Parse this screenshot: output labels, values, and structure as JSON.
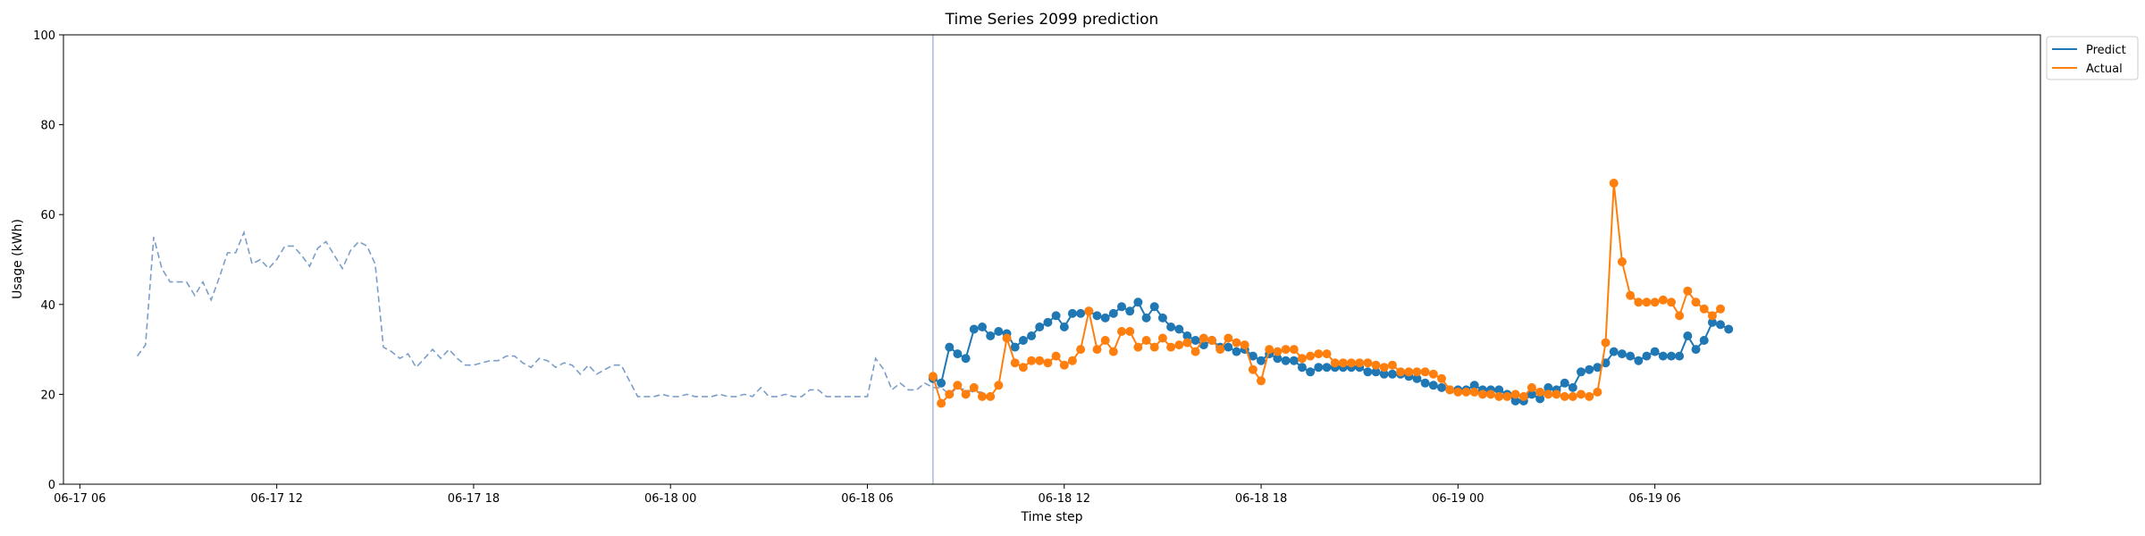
{
  "chart_data": {
    "type": "line",
    "title": "Time Series 2099 prediction",
    "xlabel": "Time step",
    "ylabel": "Usage (kWh)",
    "xlim": [
      "06-17 05:30",
      "06-19 17:45"
    ],
    "ylim": [
      0,
      100
    ],
    "yticks": [
      0,
      20,
      40,
      60,
      80,
      100
    ],
    "xticks": [
      {
        "t": "06-17 06:00",
        "label": "06-17 06"
      },
      {
        "t": "06-17 12:00",
        "label": "06-17 12"
      },
      {
        "t": "06-17 18:00",
        "label": "06-17 18"
      },
      {
        "t": "06-18 00:00",
        "label": "06-18 00"
      },
      {
        "t": "06-18 06:00",
        "label": "06-18 06"
      },
      {
        "t": "06-18 12:00",
        "label": "06-18 12"
      },
      {
        "t": "06-18 18:00",
        "label": "06-18 18"
      },
      {
        "t": "06-19 00:00",
        "label": "06-19 00"
      },
      {
        "t": "06-19 06:00",
        "label": "06-19 06"
      }
    ],
    "grid": false,
    "legend_position": "top-right, outside plot",
    "colors": {
      "predict": "#1f77b4",
      "actual": "#ff7f0e",
      "history": "#7b9ec8",
      "vline": "#8fa8d8"
    },
    "vline_x": "06-18 08:00",
    "history": {
      "start": "06-17 07:45",
      "step_minutes": 15,
      "values": [
        28.5,
        31,
        55,
        48,
        45,
        45,
        45,
        42,
        45,
        41,
        46,
        51.5,
        51.5,
        56,
        49,
        50,
        48,
        50,
        53,
        53,
        51,
        48.5,
        52.5,
        54,
        51,
        48,
        52,
        54,
        53,
        49,
        30.5,
        29.5,
        28,
        29,
        26,
        28,
        30,
        28,
        30,
        28,
        26.5,
        26.5,
        27,
        27.5,
        27.5,
        28.5,
        28.5,
        27,
        26,
        28,
        27.5,
        26,
        27,
        26.5,
        24.5,
        26.5,
        24.5,
        25.5,
        26.5,
        26.5,
        23,
        19.5,
        19.5,
        19.5,
        20,
        19.5,
        19.5,
        20,
        19.5,
        19.5,
        19.5,
        20,
        19.5,
        19.5,
        20,
        19.5,
        21.5,
        19.5,
        19.5,
        20,
        19.5,
        19.5,
        21,
        21,
        19.5,
        19.5,
        19.5,
        19.5,
        19.5,
        19.5,
        28,
        25.5,
        21,
        22.5,
        21,
        21,
        22.5,
        21.5,
        21.5,
        20,
        21.5,
        21,
        20.5,
        20.5
      ]
    },
    "series": [
      {
        "name": "Predict",
        "start": "06-18 08:00",
        "step_minutes": 15,
        "values": [
          23.5,
          22.5,
          30.5,
          29,
          28,
          34.5,
          35,
          33,
          34,
          33.5,
          30.5,
          32,
          33,
          35,
          36,
          37.5,
          35,
          38,
          38,
          38.5,
          37.5,
          37,
          38,
          39.5,
          38.5,
          40.5,
          37,
          39.5,
          37,
          35,
          34.5,
          33,
          32,
          31,
          32,
          30.5,
          30.5,
          29.5,
          30,
          28.5,
          27.5,
          29,
          28,
          27.5,
          27.5,
          26,
          25,
          26,
          26,
          26,
          26,
          26,
          26,
          25,
          25,
          24.5,
          24.5,
          24.5,
          24,
          23.5,
          22.5,
          22,
          21.5,
          21,
          21,
          21,
          22,
          21,
          21,
          21,
          20,
          18.5,
          18.5,
          20,
          19,
          21.5,
          21,
          22.5,
          21.5,
          25,
          25.5,
          26,
          27,
          29.5,
          29,
          28.5,
          27.5,
          28.5,
          29.5,
          28.5,
          28.5,
          28.5,
          33,
          30,
          32,
          36,
          35.5,
          34.5
        ]
      },
      {
        "name": "Actual",
        "start": "06-18 08:00",
        "step_minutes": 15,
        "values": [
          24,
          18,
          20,
          22,
          20,
          21.5,
          19.5,
          19.5,
          22,
          32.5,
          27,
          26,
          27.5,
          27.5,
          27,
          28.5,
          26.5,
          27.5,
          30,
          38.5,
          30,
          32,
          29.5,
          34,
          34,
          30.5,
          32,
          30.5,
          32.5,
          30.5,
          31,
          31.5,
          29.5,
          32.5,
          32,
          30,
          32.5,
          31.5,
          31,
          25.5,
          23,
          30,
          29.5,
          30,
          30,
          28,
          28.5,
          29,
          29,
          27,
          27,
          27,
          27,
          27,
          26.5,
          26,
          26.5,
          25,
          25,
          25,
          25,
          24.5,
          23.5,
          21,
          20.5,
          20.5,
          20.5,
          20,
          20,
          19.5,
          19.5,
          20,
          19.5,
          21.5,
          20.5,
          20,
          20,
          19.5,
          19.5,
          20,
          19.5,
          20.5,
          31.5,
          67,
          49.5,
          42,
          40.5,
          40.5,
          40.5,
          41,
          40.5,
          37.5,
          43,
          40.5,
          39,
          37.5,
          39
        ]
      }
    ]
  }
}
